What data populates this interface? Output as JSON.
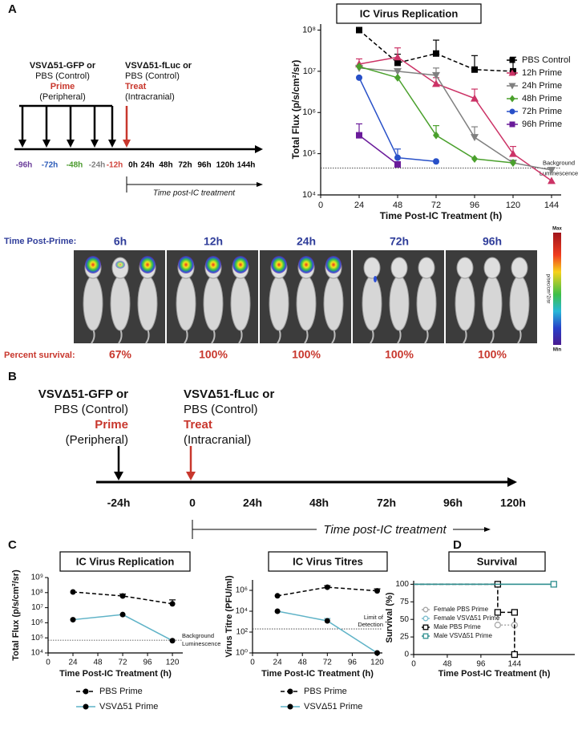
{
  "panel_labels": [
    "A",
    "B",
    "C",
    "D"
  ],
  "timeline_a": {
    "prime": [
      "VSVΔ51-GFP or",
      "PBS (Control)",
      "Prime",
      "(Peripheral)"
    ],
    "treat": [
      "VSVΔ51-fLuc or",
      "PBS (Control)",
      "Treat",
      "(Intracranial)"
    ],
    "ticks": [
      "-96h",
      "-72h",
      "-48h",
      "-24h",
      "-12h",
      "0h",
      "24h",
      "48h",
      "72h",
      "96h",
      "120h",
      "144h"
    ],
    "tick_colors": [
      "#6a3d9a",
      "#2a5ab8",
      "#4a9a2c",
      "#808080",
      "#d0443c",
      "#000000",
      "#000000",
      "#000000",
      "#000000",
      "#000000",
      "#000000",
      "#000000"
    ],
    "span_label": "Time post-IC treatment"
  },
  "imaging": {
    "time_label": "Time Post-Prime:",
    "times": [
      "6h",
      "12h",
      "24h",
      "72h",
      "96h"
    ],
    "survival_label": "Percent survival:",
    "survival": [
      "67%",
      "100%",
      "100%",
      "100%",
      "100%"
    ],
    "scale": {
      "max": "Max",
      "min": "Min",
      "unit": "p/sec/cm^2/sr"
    }
  },
  "timeline_b": {
    "prime": [
      "VSVΔ51-GFP or",
      "PBS (Control)",
      "Prime",
      "(Peripheral)"
    ],
    "treat": [
      "VSVΔ51-fLuc or",
      "PBS (Control)",
      "Treat",
      "(Intracranial)"
    ],
    "ticks": [
      "-24h",
      "0",
      "24h",
      "48h",
      "72h",
      "96h",
      "120h"
    ],
    "span_label": "Time post-IC treatment"
  },
  "chart_data": [
    {
      "type": "line",
      "title": "IC Virus Replication",
      "x_label": "Time Post-IC Treatment (h)",
      "y_label": "Total Flux (p/s/cm²/sr)",
      "log_y": true,
      "xlim": [
        0,
        150
      ],
      "ylim": [
        10000,
        140000000
      ],
      "xticks": [
        0,
        24,
        48,
        72,
        96,
        120,
        144
      ],
      "yticks": [
        {
          "value": 10000,
          "label": "10⁴"
        },
        {
          "value": 100000,
          "label": "10⁵"
        },
        {
          "value": 1000000,
          "label": "10⁶"
        },
        {
          "value": 10000000,
          "label": "10⁷"
        },
        {
          "value": 100000000,
          "label": "10⁸"
        }
      ],
      "x": [
        24,
        48,
        72,
        96,
        120,
        144
      ],
      "series": [
        {
          "name": "PBS Control",
          "color": "#000000",
          "dash": "dashed",
          "marker": "square",
          "values": [
            100000000,
            16000000,
            27000000,
            11000000,
            10000000,
            null
          ],
          "errors": [
            null,
            10000000,
            30000000,
            13000000,
            12000000,
            null
          ]
        },
        {
          "name": "12h Prime",
          "color": "#cc3366",
          "dash": "solid",
          "marker": "triangle",
          "values": [
            15000000,
            22000000,
            5000000,
            2200000,
            100000,
            22000
          ],
          "errors": [
            5000000,
            15000000,
            2000000,
            1500000,
            50000,
            null
          ]
        },
        {
          "name": "24h Prime",
          "color": "#808080",
          "dash": "solid",
          "marker": "triangle-down",
          "values": [
            12000000,
            10000000,
            8000000,
            250000,
            60000,
            40000
          ],
          "errors": [
            null,
            null,
            4000000,
            200000,
            null,
            null
          ]
        },
        {
          "name": "48h Prime",
          "color": "#4aa02c",
          "dash": "solid",
          "marker": "diamond",
          "values": [
            13000000,
            7000000,
            280000,
            75000,
            60000,
            null
          ],
          "errors": [
            null,
            null,
            200000,
            null,
            null,
            null
          ]
        },
        {
          "name": "72h Prime",
          "color": "#2850c8",
          "dash": "solid",
          "marker": "circle",
          "values": [
            7000000,
            80000,
            65000,
            null,
            null,
            null
          ],
          "errors": [
            null,
            50000,
            null,
            null,
            null,
            null
          ]
        },
        {
          "name": "96h Prime",
          "color": "#6a1b9a",
          "dash": "solid",
          "marker": "square",
          "values": [
            280000,
            55000,
            null,
            null,
            null,
            null
          ],
          "errors": [
            250000,
            null,
            null,
            null,
            null,
            null
          ]
        }
      ],
      "reference": {
        "value": 45000,
        "lines": [
          "Background",
          "Luminescence"
        ]
      },
      "legend": "upper right"
    },
    {
      "type": "line",
      "title": "IC Virus Replication",
      "x_label": "Time Post-IC Treatment (h)",
      "y_label": "Total Flux (p/s/cm²/sr)",
      "log_y": true,
      "xlim": [
        0,
        130
      ],
      "ylim": [
        10000,
        1000000000
      ],
      "xticks": [
        0,
        24,
        48,
        72,
        96,
        120
      ],
      "yticks": [
        {
          "value": 10000,
          "label": "10⁴"
        },
        {
          "value": 100000,
          "label": "10⁵"
        },
        {
          "value": 1000000,
          "label": "10⁶"
        },
        {
          "value": 10000000,
          "label": "10⁷"
        },
        {
          "value": 100000000,
          "label": "10⁸"
        },
        {
          "value": 1000000000,
          "label": "10⁹"
        }
      ],
      "x": [
        24,
        72,
        120
      ],
      "series": [
        {
          "name": "PBS Prime",
          "color": "#000000",
          "marker_color": "#000000",
          "dash": "dashed",
          "marker": "circle",
          "values": [
            110000000,
            60000000,
            18000000
          ],
          "errors": [
            null,
            20000000,
            15000000
          ]
        },
        {
          "name": "VSVΔ51 Prime",
          "color": "#5fb3c7",
          "marker_color": "#000000",
          "dash": "solid",
          "marker": "circle",
          "values": [
            1600000,
            3500000,
            65000
          ],
          "errors": [
            null,
            null,
            null
          ]
        }
      ],
      "reference": {
        "value": 70000,
        "lines": [
          "Background",
          "Luminescence"
        ]
      },
      "legend": "below"
    },
    {
      "type": "line",
      "title": "IC Virus Titres",
      "x_label": "Time Post-IC Treatment (h)",
      "y_label": "Virus Titre (PFU/ml)",
      "log_y": true,
      "xlim": [
        0,
        125
      ],
      "ylim": [
        1,
        10000000
      ],
      "xticks": [
        0,
        24,
        48,
        72,
        96,
        120
      ],
      "yticks": [
        {
          "value": 1,
          "label": "10⁰"
        },
        {
          "value": 100,
          "label": "10²"
        },
        {
          "value": 10000,
          "label": "10⁴"
        },
        {
          "value": 1000000,
          "label": "10⁶"
        }
      ],
      "x": [
        24,
        72,
        120
      ],
      "series": [
        {
          "name": "PBS Prime",
          "color": "#000000",
          "marker_color": "#000000",
          "dash": "dashed",
          "marker": "circle",
          "values": [
            300000,
            2000000,
            900000
          ],
          "errors": [
            null,
            800000,
            500000
          ]
        },
        {
          "name": "VSVΔ51 Prime",
          "color": "#5fb3c7",
          "marker_color": "#000000",
          "dash": "solid",
          "marker": "circle",
          "values": [
            10000,
            1200,
            1
          ],
          "errors": [
            null,
            800,
            null
          ]
        }
      ],
      "reference": {
        "value": 200,
        "lines": [
          "Limit of",
          "Detection"
        ]
      },
      "legend": "below"
    },
    {
      "type": "line",
      "title": "Survival",
      "x_label": "Time Post-IC Treatment (h)",
      "y_label": "Survival (%)",
      "xlim": [
        0,
        230
      ],
      "ylim": [
        0,
        105
      ],
      "xticks": [
        0,
        48,
        96,
        144
      ],
      "yticks": [
        0,
        25,
        50,
        75,
        100
      ],
      "series": [
        {
          "name": "Female PBS Prime",
          "color": "#a8a8a8",
          "dash": "dotted",
          "marker": "open-circle",
          "x": [
            0,
            120,
            120,
            144,
            144
          ],
          "values": [
            100,
            100,
            42,
            42,
            0
          ]
        },
        {
          "name": "Female VSVΔ51 Prime",
          "color": "#7fbfcf",
          "dash": "solid",
          "marker": "open-circle",
          "x": [
            0,
            200
          ],
          "values": [
            100,
            100
          ]
        },
        {
          "name": "Male PBS Prime",
          "color": "#000000",
          "dash": "dashed",
          "marker": "open-square",
          "x": [
            0,
            120,
            120,
            144,
            144
          ],
          "values": [
            100,
            100,
            60,
            60,
            0
          ]
        },
        {
          "name": "Male VSVΔ51 Prime",
          "color": "#2f8f8f",
          "dash": "solid",
          "marker": "open-square",
          "x": [
            0,
            200
          ],
          "values": [
            100,
            100
          ]
        }
      ],
      "legend": "lower left"
    }
  ]
}
